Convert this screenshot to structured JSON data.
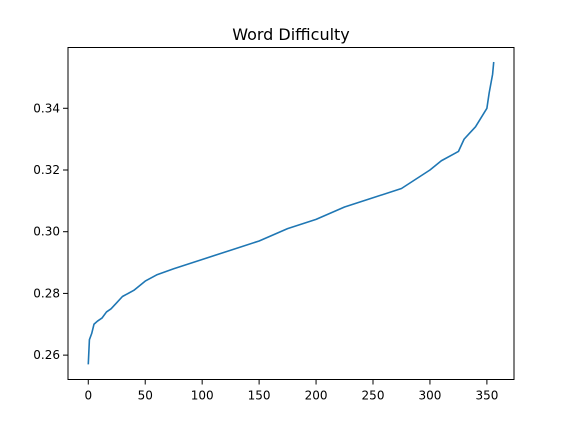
{
  "chart_data": {
    "type": "line",
    "title": "Word Difficulty",
    "xlabel": "",
    "ylabel": "",
    "xlim": [
      -17.8,
      373.8
    ],
    "ylim": [
      0.2521,
      0.3597
    ],
    "xticks": [
      0,
      50,
      100,
      150,
      200,
      250,
      300,
      350
    ],
    "yticks": [
      0.26,
      0.28,
      0.3,
      0.32,
      0.34
    ],
    "ytick_labels": [
      "0.26",
      "0.28",
      "0.30",
      "0.32",
      "0.34"
    ],
    "grid": false,
    "line_color": "#1f77b4",
    "series": [
      {
        "x": [
          0,
          1,
          3,
          5,
          8,
          12,
          16,
          20,
          25,
          30,
          40,
          50,
          60,
          75,
          100,
          125,
          150,
          175,
          200,
          225,
          250,
          275,
          300,
          310,
          320,
          325,
          330,
          335,
          340,
          345,
          350,
          352,
          354,
          355,
          356
        ],
        "values": [
          0.257,
          0.265,
          0.267,
          0.27,
          0.271,
          0.272,
          0.274,
          0.275,
          0.277,
          0.279,
          0.281,
          0.284,
          0.286,
          0.288,
          0.291,
          0.294,
          0.297,
          0.301,
          0.304,
          0.308,
          0.311,
          0.314,
          0.32,
          0.323,
          0.325,
          0.326,
          0.33,
          0.332,
          0.334,
          0.337,
          0.34,
          0.345,
          0.349,
          0.351,
          0.355
        ]
      }
    ]
  }
}
